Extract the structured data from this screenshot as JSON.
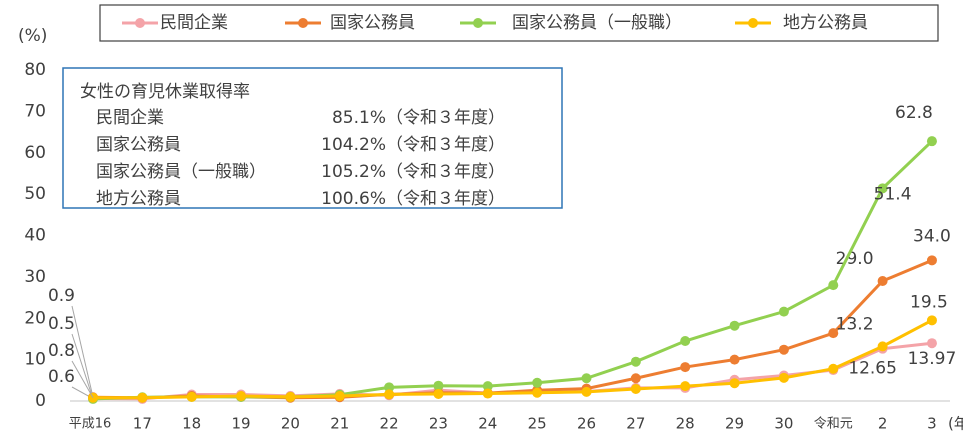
{
  "chart_data": {
    "type": "line",
    "y_label": "(%)",
    "x_label": "(年)",
    "categories": [
      "平成16",
      "17",
      "18",
      "19",
      "20",
      "21",
      "22",
      "23",
      "24",
      "25",
      "26",
      "27",
      "28",
      "29",
      "30",
      "令和元",
      "2",
      "3"
    ],
    "ylim": [
      0,
      80
    ],
    "yticks": [
      0,
      10,
      20,
      30,
      40,
      50,
      60,
      70,
      80
    ],
    "grid": false,
    "series": [
      {
        "name": "民間企業",
        "color": "#f4a3a8",
        "values": [
          0.6,
          0.5,
          1.56,
          1.56,
          1.23,
          1.72,
          1.38,
          2.63,
          1.89,
          2.03,
          2.3,
          3.16,
          3.16,
          5.14,
          6.16,
          7.48,
          12.65,
          13.97
        ],
        "value_labels": [
          "0.6",
          null,
          null,
          null,
          null,
          null,
          null,
          null,
          null,
          null,
          null,
          null,
          null,
          null,
          null,
          null,
          "12.65",
          "13.97"
        ]
      },
      {
        "name": "国家公務員",
        "color": "#ed7d31",
        "values": [
          0.9,
          0.8,
          1.2,
          1.0,
          0.8,
          0.9,
          1.6,
          2.0,
          1.9,
          2.6,
          3.0,
          5.5,
          8.2,
          10.0,
          12.4,
          16.4,
          29.0,
          34.0
        ],
        "value_labels": [
          "0.9",
          null,
          null,
          null,
          null,
          null,
          null,
          null,
          null,
          null,
          null,
          null,
          null,
          null,
          null,
          null,
          "29.0",
          "34.0"
        ]
      },
      {
        "name": "国家公務員（一般職）",
        "color": "#92d050",
        "values": [
          0.5,
          0.9,
          1.0,
          1.0,
          1.0,
          1.5,
          3.3,
          3.7,
          3.6,
          4.4,
          5.5,
          9.5,
          14.5,
          18.2,
          21.6,
          28.0,
          51.4,
          62.8
        ],
        "value_labels": [
          "0.5",
          null,
          null,
          null,
          null,
          null,
          null,
          null,
          null,
          null,
          null,
          null,
          null,
          null,
          null,
          null,
          "51.4",
          "62.8"
        ]
      },
      {
        "name": "地方公務員",
        "color": "#ffc000",
        "values": [
          0.8,
          0.8,
          1.0,
          1.2,
          1.0,
          1.2,
          1.6,
          1.7,
          1.8,
          2.0,
          2.2,
          2.9,
          3.6,
          4.3,
          5.6,
          7.8,
          13.2,
          19.5
        ],
        "value_labels": [
          "0.8",
          null,
          null,
          null,
          null,
          null,
          null,
          null,
          null,
          null,
          null,
          null,
          null,
          null,
          null,
          null,
          "13.2",
          "19.5"
        ]
      }
    ],
    "annotation": {
      "title": "女性の育児休業取得率",
      "rows": [
        [
          "民間企業",
          "85.1%",
          "（令和３年度）"
        ],
        [
          "国家公務員",
          "104.2%",
          "（令和３年度）"
        ],
        [
          "国家公務員（一般職）",
          "105.2%",
          "（令和３年度）"
        ],
        [
          "地方公務員",
          "100.6%",
          "（令和３年度）"
        ]
      ]
    }
  }
}
